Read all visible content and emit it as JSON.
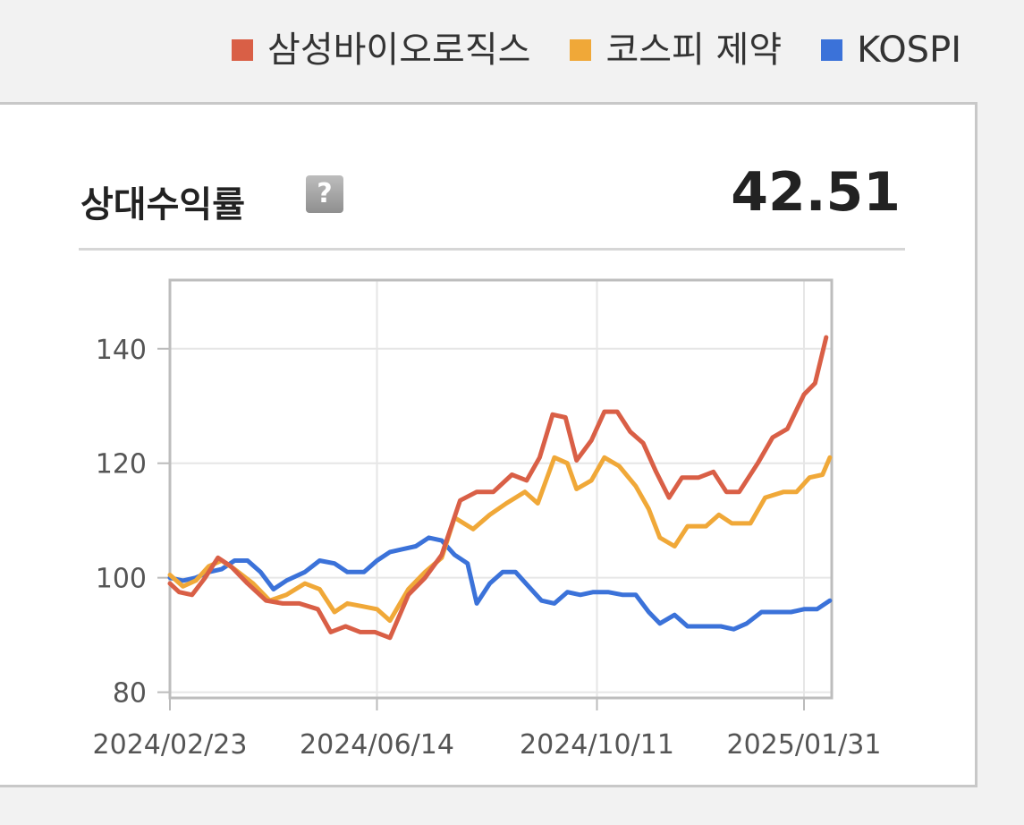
{
  "metric": {
    "label": "상대수익률",
    "help_icon_glyph": "?",
    "value": "42.51"
  },
  "chart_data": {
    "type": "line",
    "series": [
      {
        "name": "삼성바이오로직스",
        "color": "#d95f46",
        "points": [
          [
            "2024-02-23",
            99
          ],
          [
            "2024-02-28",
            97.5
          ],
          [
            "2024-03-06",
            97
          ],
          [
            "2024-03-13",
            100
          ],
          [
            "2024-03-20",
            103.5
          ],
          [
            "2024-03-27",
            102
          ],
          [
            "2024-04-05",
            99
          ],
          [
            "2024-04-15",
            96
          ],
          [
            "2024-04-24",
            95.5
          ],
          [
            "2024-05-03",
            95.5
          ],
          [
            "2024-05-13",
            94.5
          ],
          [
            "2024-05-20",
            90.5
          ],
          [
            "2024-05-28",
            91.5
          ],
          [
            "2024-06-05",
            90.5
          ],
          [
            "2024-06-13",
            90.5
          ],
          [
            "2024-06-21",
            89.5
          ],
          [
            "2024-07-01",
            97
          ],
          [
            "2024-07-10",
            100
          ],
          [
            "2024-07-19",
            104
          ],
          [
            "2024-07-29",
            113.5
          ],
          [
            "2024-08-07",
            115
          ],
          [
            "2024-08-16",
            115
          ],
          [
            "2024-08-26",
            118
          ],
          [
            "2024-09-03",
            117
          ],
          [
            "2024-09-10",
            121
          ],
          [
            "2024-09-17",
            128.5
          ],
          [
            "2024-09-24",
            128
          ],
          [
            "2024-09-30",
            120.5
          ],
          [
            "2024-10-08",
            124
          ],
          [
            "2024-10-15",
            129
          ],
          [
            "2024-10-22",
            129
          ],
          [
            "2024-10-29",
            125.5
          ],
          [
            "2024-11-05",
            123.5
          ],
          [
            "2024-11-12",
            118.5
          ],
          [
            "2024-11-19",
            114
          ],
          [
            "2024-11-26",
            117.5
          ],
          [
            "2024-12-05",
            117.5
          ],
          [
            "2024-12-13",
            118.5
          ],
          [
            "2024-12-20",
            115
          ],
          [
            "2024-12-27",
            115
          ],
          [
            "2025-01-06",
            120
          ],
          [
            "2025-01-14",
            124.5
          ],
          [
            "2025-01-22",
            126
          ],
          [
            "2025-01-31",
            132
          ],
          [
            "2025-02-06",
            134
          ],
          [
            "2025-02-12",
            142
          ]
        ]
      },
      {
        "name": "코스피 제약",
        "color": "#f0a838",
        "points": [
          [
            "2024-02-23",
            100.5
          ],
          [
            "2024-03-01",
            98.5
          ],
          [
            "2024-03-08",
            99.5
          ],
          [
            "2024-03-15",
            102
          ],
          [
            "2024-03-22",
            103
          ],
          [
            "2024-03-29",
            101.5
          ],
          [
            "2024-04-08",
            99
          ],
          [
            "2024-04-17",
            96
          ],
          [
            "2024-04-26",
            97
          ],
          [
            "2024-05-06",
            99
          ],
          [
            "2024-05-14",
            98
          ],
          [
            "2024-05-22",
            94
          ],
          [
            "2024-05-29",
            95.5
          ],
          [
            "2024-06-06",
            95
          ],
          [
            "2024-06-14",
            94.5
          ],
          [
            "2024-06-21",
            92.5
          ],
          [
            "2024-07-01",
            98
          ],
          [
            "2024-07-10",
            101
          ],
          [
            "2024-07-19",
            103.5
          ],
          [
            "2024-07-26",
            110.5
          ],
          [
            "2024-08-05",
            108.5
          ],
          [
            "2024-08-14",
            111
          ],
          [
            "2024-08-23",
            113
          ],
          [
            "2024-09-02",
            115
          ],
          [
            "2024-09-09",
            113
          ],
          [
            "2024-09-18",
            121
          ],
          [
            "2024-09-25",
            120
          ],
          [
            "2024-09-30",
            115.5
          ],
          [
            "2024-10-08",
            117
          ],
          [
            "2024-10-15",
            121
          ],
          [
            "2024-10-23",
            119.5
          ],
          [
            "2024-11-01",
            116
          ],
          [
            "2024-11-08",
            112
          ],
          [
            "2024-11-14",
            107
          ],
          [
            "2024-11-22",
            105.5
          ],
          [
            "2024-11-29",
            109
          ],
          [
            "2024-12-09",
            109
          ],
          [
            "2024-12-16",
            111
          ],
          [
            "2024-12-23",
            109.5
          ],
          [
            "2025-01-02",
            109.5
          ],
          [
            "2025-01-10",
            114
          ],
          [
            "2025-01-20",
            115
          ],
          [
            "2025-01-27",
            115
          ],
          [
            "2025-02-03",
            117.5
          ],
          [
            "2025-02-10",
            118
          ],
          [
            "2025-02-14",
            121
          ]
        ]
      },
      {
        "name": "KOSPI",
        "color": "#3b72d9",
        "points": [
          [
            "2024-02-23",
            100
          ],
          [
            "2024-03-01",
            99.5
          ],
          [
            "2024-03-08",
            100
          ],
          [
            "2024-03-15",
            101
          ],
          [
            "2024-03-22",
            101.5
          ],
          [
            "2024-03-29",
            103
          ],
          [
            "2024-04-05",
            103
          ],
          [
            "2024-04-12",
            101
          ],
          [
            "2024-04-19",
            98
          ],
          [
            "2024-04-26",
            99.5
          ],
          [
            "2024-05-06",
            101
          ],
          [
            "2024-05-14",
            103
          ],
          [
            "2024-05-22",
            102.5
          ],
          [
            "2024-05-29",
            101
          ],
          [
            "2024-06-07",
            101
          ],
          [
            "2024-06-14",
            103
          ],
          [
            "2024-06-21",
            104.5
          ],
          [
            "2024-06-28",
            105
          ],
          [
            "2024-07-05",
            105.5
          ],
          [
            "2024-07-12",
            107
          ],
          [
            "2024-07-19",
            106.5
          ],
          [
            "2024-07-26",
            104
          ],
          [
            "2024-08-02",
            102.5
          ],
          [
            "2024-08-07",
            95.5
          ],
          [
            "2024-08-14",
            99
          ],
          [
            "2024-08-21",
            101
          ],
          [
            "2024-08-28",
            101
          ],
          [
            "2024-09-04",
            98.5
          ],
          [
            "2024-09-11",
            96
          ],
          [
            "2024-09-18",
            95.5
          ],
          [
            "2024-09-25",
            97.5
          ],
          [
            "2024-10-02",
            97
          ],
          [
            "2024-10-09",
            97.5
          ],
          [
            "2024-10-17",
            97.5
          ],
          [
            "2024-10-25",
            97
          ],
          [
            "2024-11-01",
            97
          ],
          [
            "2024-11-08",
            94
          ],
          [
            "2024-11-14",
            92
          ],
          [
            "2024-11-22",
            93.5
          ],
          [
            "2024-11-29",
            91.5
          ],
          [
            "2024-12-09",
            91.5
          ],
          [
            "2024-12-17",
            91.5
          ],
          [
            "2024-12-24",
            91
          ],
          [
            "2024-12-31",
            92
          ],
          [
            "2025-01-08",
            94
          ],
          [
            "2025-01-17",
            94
          ],
          [
            "2025-01-24",
            94
          ],
          [
            "2025-01-31",
            94.5
          ],
          [
            "2025-02-07",
            94.5
          ],
          [
            "2025-02-14",
            96
          ]
        ]
      }
    ],
    "x_ticks": [
      {
        "date": "2024-02-23",
        "label": "2024/02/23"
      },
      {
        "date": "2024-06-14",
        "label": "2024/06/14"
      },
      {
        "date": "2024-10-11",
        "label": "2024/10/11"
      },
      {
        "date": "2025-01-31",
        "label": "2025/01/31"
      }
    ],
    "xlim": [
      "2024-02-23",
      "2025-02-15"
    ],
    "y_ticks": [
      80,
      100,
      120,
      140
    ],
    "ylim": [
      79,
      152
    ],
    "grid": true,
    "legend_position": "top-right"
  }
}
